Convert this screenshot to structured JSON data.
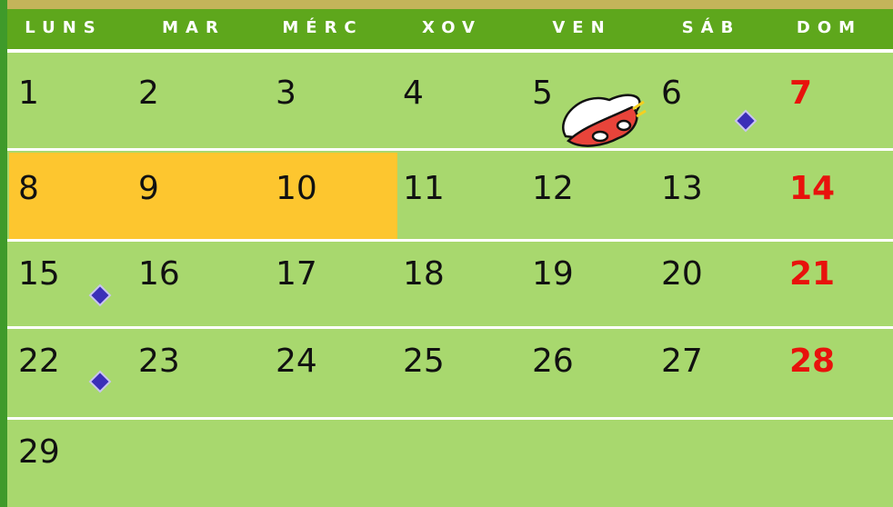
{
  "header": {
    "days": [
      "LUNS",
      "MAR",
      "MÉRC",
      "XOV",
      "VEN",
      "SÁB",
      "DOM"
    ]
  },
  "weeks": [
    [
      "1",
      "2",
      "3",
      "4",
      "5",
      "6",
      "7"
    ],
    [
      "8",
      "9",
      "10",
      "11",
      "12",
      "13",
      "14"
    ],
    [
      "15",
      "16",
      "17",
      "18",
      "19",
      "20",
      "21"
    ],
    [
      "22",
      "23",
      "24",
      "25",
      "26",
      "27",
      "28"
    ],
    [
      "29"
    ]
  ]
}
